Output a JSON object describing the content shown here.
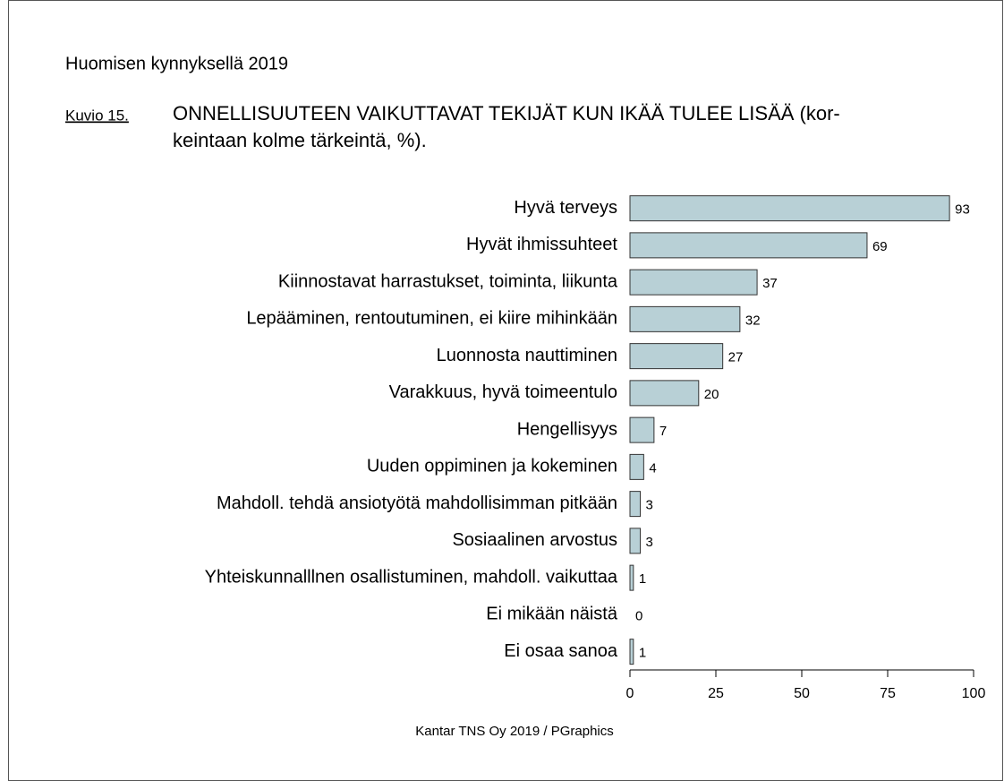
{
  "chart_data": {
    "type": "bar",
    "orientation": "horizontal",
    "header": "Huomisen kynnyksellä 2019",
    "figure_label": "Kuvio 15.",
    "title": [
      "ONNELLISUUTEEN VAIKUTTAVAT TEKIJÄT KUN IKÄÄ TULEE LISÄÄ (kor-",
      "keintaan kolme tärkeintä, %)."
    ],
    "source": "Kantar TNS Oy 2019 / PGraphics",
    "categories": [
      "Hyvä terveys",
      "Hyvät ihmissuhteet",
      "Kiinnostavat harrastukset, toiminta, liikunta",
      "Lepääminen, rentoutuminen, ei kiire mihinkään",
      "Luonnosta nauttiminen",
      "Varakkuus, hyvä toimeentulo",
      "Hengellisyys",
      "Uuden oppiminen ja kokeminen",
      "Mahdoll. tehdä ansiotyötä mahdollisimman pitkään",
      "Sosiaalinen arvostus",
      "Yhteiskunnalllnen osallistuminen, mahdoll. vaikuttaa",
      "Ei mikään näistä",
      "Ei osaa sanoa"
    ],
    "values": [
      93,
      69,
      37,
      32,
      27,
      20,
      7,
      4,
      3,
      3,
      1,
      0,
      1
    ],
    "color": "#b8d0d6",
    "xlim": [
      0,
      100
    ],
    "xticks": [
      0,
      25,
      50,
      75,
      100
    ],
    "grid": false
  }
}
